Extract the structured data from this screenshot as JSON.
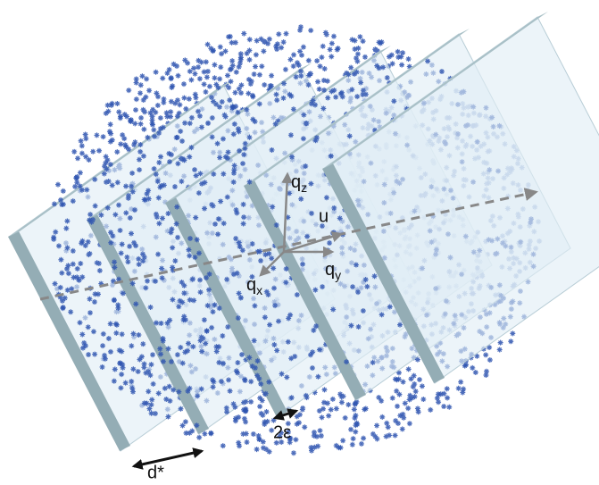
{
  "labels": {
    "qz": {
      "main": "q",
      "sub": "z"
    },
    "u": "u",
    "qy": {
      "main": "q",
      "sub": "y"
    },
    "qx": {
      "main": "q",
      "sub": "x"
    },
    "d_star": "d*",
    "two_eps": "2ε"
  }
}
